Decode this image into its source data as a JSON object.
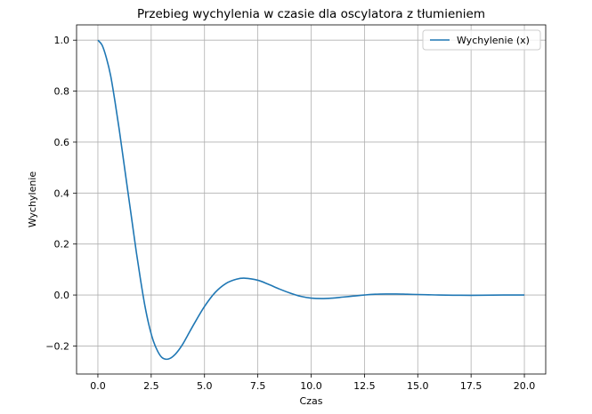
{
  "chart_data": {
    "type": "line",
    "title": "Przebieg wychylenia w czasie dla oscylatora z tłumieniem",
    "xlabel": "Czas",
    "ylabel": "Wychylenie",
    "xlim": [
      -1.0,
      21.0
    ],
    "ylim": [
      -0.31,
      1.06
    ],
    "xticks": [
      0.0,
      2.5,
      5.0,
      7.5,
      10.0,
      12.5,
      15.0,
      17.5,
      20.0
    ],
    "xtick_labels": [
      "0.0",
      "2.5",
      "5.0",
      "7.5",
      "10.0",
      "12.5",
      "15.0",
      "17.5",
      "20.0"
    ],
    "yticks": [
      -0.2,
      0.0,
      0.2,
      0.4,
      0.6,
      0.8,
      1.0
    ],
    "ytick_labels": [
      "−0.2",
      "0.0",
      "0.2",
      "0.4",
      "0.6",
      "0.8",
      "1.0"
    ],
    "grid": true,
    "legend_position": "top-right",
    "series": [
      {
        "name": "Wychylenie (x)",
        "color": "#1f77b4",
        "x": [
          0.0,
          0.2,
          0.4,
          0.6,
          0.8,
          1.0,
          1.2,
          1.4,
          1.6,
          1.8,
          2.0,
          2.2,
          2.4,
          2.6,
          2.8,
          3.0,
          3.2,
          3.4,
          3.6,
          3.8,
          4.0,
          4.2,
          4.5,
          5.0,
          5.5,
          6.0,
          6.5,
          6.9,
          7.5,
          8.0,
          8.5,
          9.0,
          9.5,
          10.0,
          10.5,
          11.0,
          11.5,
          12.0,
          12.5,
          13.0,
          13.5,
          14.0,
          14.5,
          15.0,
          15.5,
          16.0,
          17.0,
          18.0,
          19.0,
          20.0
        ],
        "y": [
          1.0,
          0.98,
          0.93,
          0.86,
          0.76,
          0.65,
          0.53,
          0.41,
          0.29,
          0.17,
          0.06,
          -0.04,
          -0.12,
          -0.18,
          -0.22,
          -0.245,
          -0.252,
          -0.248,
          -0.235,
          -0.215,
          -0.19,
          -0.16,
          -0.115,
          -0.045,
          0.01,
          0.045,
          0.062,
          0.066,
          0.058,
          0.042,
          0.024,
          0.008,
          -0.005,
          -0.012,
          -0.014,
          -0.012,
          -0.008,
          -0.004,
          0.0,
          0.003,
          0.004,
          0.004,
          0.003,
          0.002,
          0.001,
          0.0,
          -0.001,
          -0.001,
          0.0,
          0.0
        ]
      }
    ]
  }
}
